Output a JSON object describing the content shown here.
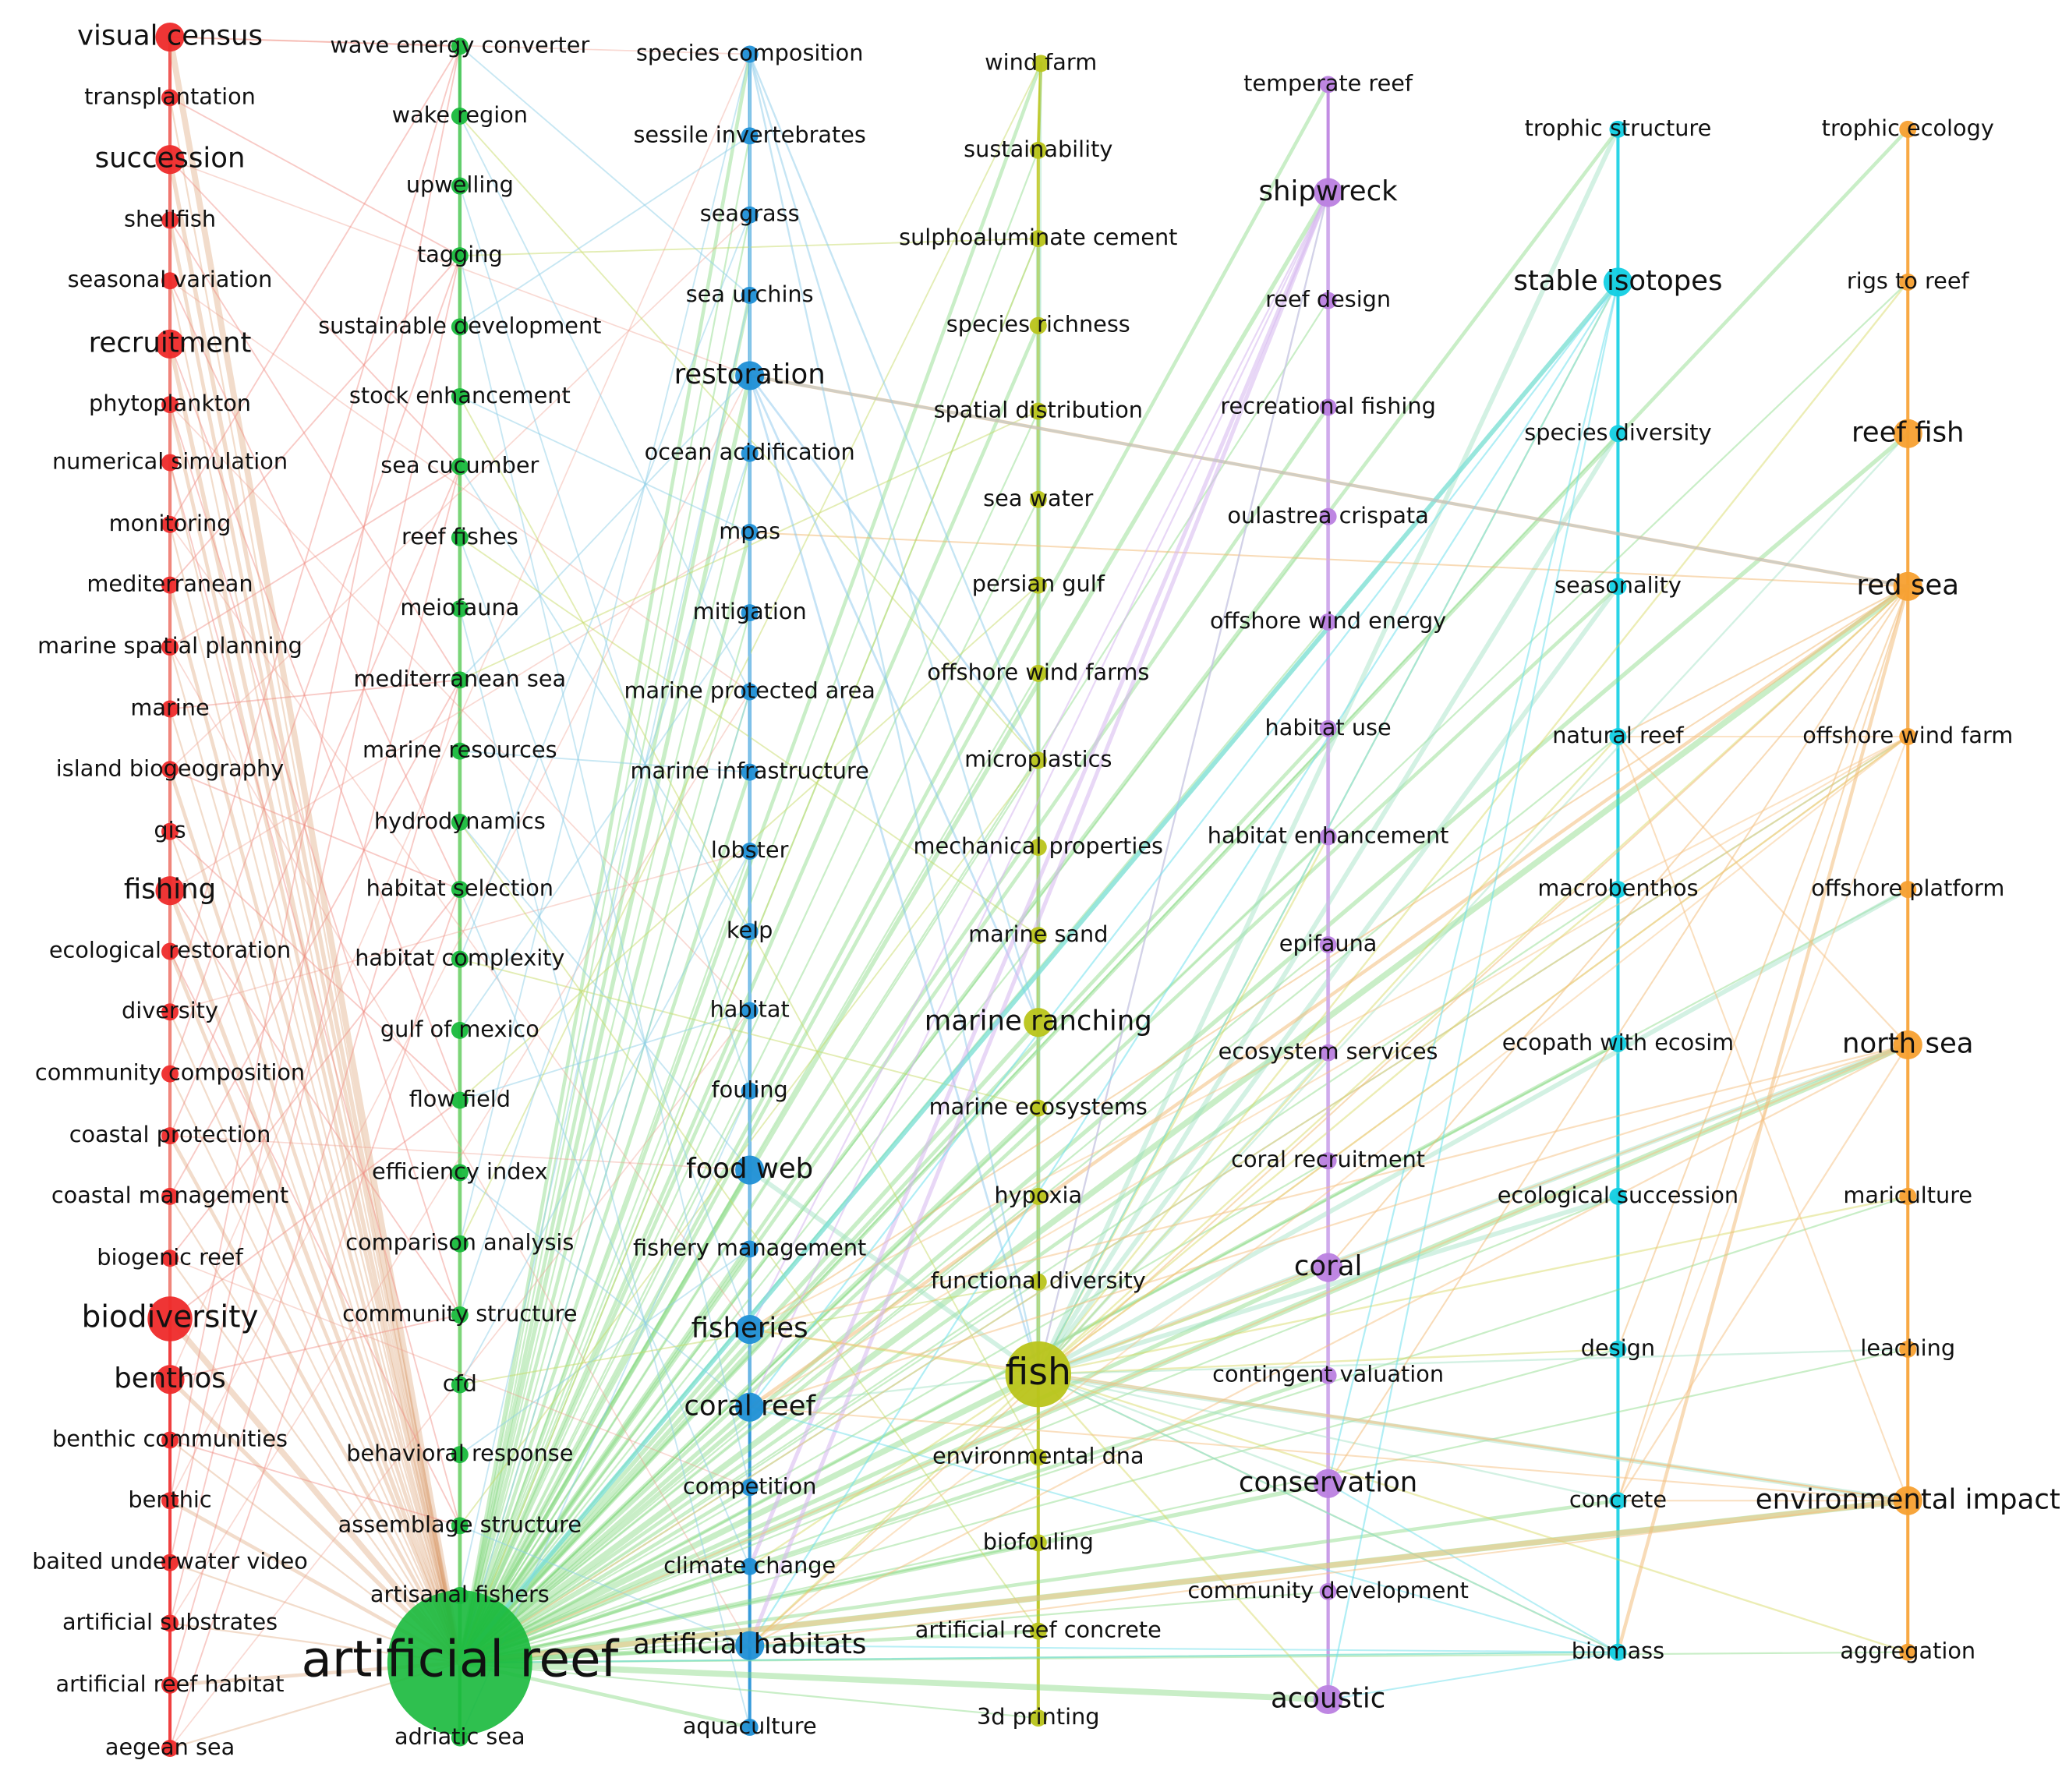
{
  "clusters": [
    {
      "id": "red",
      "color": "#ee2a2a",
      "nodes": [
        {
          "label": "visual census",
          "size": 2
        },
        {
          "label": "transplantation",
          "size": 1
        },
        {
          "label": "succession",
          "size": 2
        },
        {
          "label": "shellfish",
          "size": 1
        },
        {
          "label": "seasonal variation",
          "size": 1
        },
        {
          "label": "recruitment",
          "size": 2
        },
        {
          "label": "phytoplankton",
          "size": 1
        },
        {
          "label": "numerical simulation",
          "size": 1
        },
        {
          "label": "monitoring",
          "size": 1
        },
        {
          "label": "mediterranean",
          "size": 1
        },
        {
          "label": "marine spatial planning",
          "size": 1
        },
        {
          "label": "marine",
          "size": 1
        },
        {
          "label": "island biogeography",
          "size": 1
        },
        {
          "label": "gis",
          "size": 1
        },
        {
          "label": "fishing",
          "size": 2
        },
        {
          "label": "ecological restoration",
          "size": 1
        },
        {
          "label": "diversity",
          "size": 1
        },
        {
          "label": "community composition",
          "size": 1
        },
        {
          "label": "coastal protection",
          "size": 1
        },
        {
          "label": "coastal management",
          "size": 1
        },
        {
          "label": "biogenic reef",
          "size": 1
        },
        {
          "label": "biodiversity",
          "size": 3
        },
        {
          "label": "benthos",
          "size": 2
        },
        {
          "label": "benthic communities",
          "size": 1
        },
        {
          "label": "benthic",
          "size": 1
        },
        {
          "label": "baited underwater video",
          "size": 1
        },
        {
          "label": "artificial substrates",
          "size": 1
        },
        {
          "label": "artificial reef habitat",
          "size": 1
        },
        {
          "label": "aegean sea",
          "size": 1
        }
      ]
    },
    {
      "id": "green",
      "color": "#18b93c",
      "nodes": [
        {
          "label": "wave energy converter",
          "size": 1
        },
        {
          "label": "wake region",
          "size": 1
        },
        {
          "label": "upwelling",
          "size": 1
        },
        {
          "label": "tagging",
          "size": 1
        },
        {
          "label": "sustainable development",
          "size": 1
        },
        {
          "label": "stock enhancement",
          "size": 1
        },
        {
          "label": "sea cucumber",
          "size": 1
        },
        {
          "label": "reef fishes",
          "size": 1
        },
        {
          "label": "meiofauna",
          "size": 1
        },
        {
          "label": "mediterranean sea",
          "size": 1
        },
        {
          "label": "marine resources",
          "size": 1
        },
        {
          "label": "hydrodynamics",
          "size": 1
        },
        {
          "label": "habitat selection",
          "size": 1
        },
        {
          "label": "habitat complexity",
          "size": 1
        },
        {
          "label": "gulf of mexico",
          "size": 1
        },
        {
          "label": "flow field",
          "size": 1
        },
        {
          "label": "efficiency index",
          "size": 1
        },
        {
          "label": "comparison analysis",
          "size": 1
        },
        {
          "label": "community structure",
          "size": 1
        },
        {
          "label": "cfd",
          "size": 1
        },
        {
          "label": "behavioral response",
          "size": 1
        },
        {
          "label": "assemblage structure",
          "size": 1
        },
        {
          "label": "artisanal fishers",
          "size": 1
        },
        {
          "label": "artificial reef",
          "size": 6
        },
        {
          "label": "adriatic sea",
          "size": 1
        }
      ]
    },
    {
      "id": "blue",
      "color": "#1f8fd6",
      "nodes": [
        {
          "label": "species composition",
          "size": 1
        },
        {
          "label": "sessile invertebrates",
          "size": 1
        },
        {
          "label": "seagrass",
          "size": 1
        },
        {
          "label": "sea urchins",
          "size": 1
        },
        {
          "label": "restoration",
          "size": 2
        },
        {
          "label": "ocean acidification",
          "size": 1
        },
        {
          "label": "mpas",
          "size": 1
        },
        {
          "label": "mitigation",
          "size": 1
        },
        {
          "label": "marine protected area",
          "size": 1
        },
        {
          "label": "marine infrastructure",
          "size": 1
        },
        {
          "label": "lobster",
          "size": 1
        },
        {
          "label": "kelp",
          "size": 1
        },
        {
          "label": "habitat",
          "size": 1
        },
        {
          "label": "fouling",
          "size": 1
        },
        {
          "label": "food web",
          "size": 2
        },
        {
          "label": "fishery management",
          "size": 1
        },
        {
          "label": "fisheries",
          "size": 2
        },
        {
          "label": "coral reef",
          "size": 2
        },
        {
          "label": "competition",
          "size": 1
        },
        {
          "label": "climate change",
          "size": 1
        },
        {
          "label": "artificial habitats",
          "size": 2
        },
        {
          "label": "aquaculture",
          "size": 1
        }
      ]
    },
    {
      "id": "olive",
      "color": "#b9c41a",
      "nodes": [
        {
          "label": "wind farm",
          "size": 1
        },
        {
          "label": "sustainability",
          "size": 1
        },
        {
          "label": "sulphoaluminate cement",
          "size": 1
        },
        {
          "label": "species richness",
          "size": 1
        },
        {
          "label": "spatial distribution",
          "size": 1
        },
        {
          "label": "sea water",
          "size": 1
        },
        {
          "label": "persian gulf",
          "size": 1
        },
        {
          "label": "offshore wind farms",
          "size": 1
        },
        {
          "label": "microplastics",
          "size": 1
        },
        {
          "label": "mechanical properties",
          "size": 1
        },
        {
          "label": "marine sand",
          "size": 1
        },
        {
          "label": "marine ranching",
          "size": 2
        },
        {
          "label": "marine ecosystems",
          "size": 1
        },
        {
          "label": "hypoxia",
          "size": 1
        },
        {
          "label": "functional diversity",
          "size": 1
        },
        {
          "label": "fish",
          "size": 4
        },
        {
          "label": "environmental dna",
          "size": 1
        },
        {
          "label": "biofouling",
          "size": 1
        },
        {
          "label": "artificial reef concrete",
          "size": 1
        },
        {
          "label": "3d printing",
          "size": 1
        }
      ]
    },
    {
      "id": "purple",
      "color": "#bb7fe0",
      "nodes": [
        {
          "label": "temperate reef",
          "size": 1
        },
        {
          "label": "shipwreck",
          "size": 2
        },
        {
          "label": "reef design",
          "size": 1
        },
        {
          "label": "recreational fishing",
          "size": 1
        },
        {
          "label": "oulastrea crispata",
          "size": 1
        },
        {
          "label": "offshore wind energy",
          "size": 1
        },
        {
          "label": "habitat use",
          "size": 1
        },
        {
          "label": "habitat enhancement",
          "size": 1
        },
        {
          "label": "epifauna",
          "size": 1
        },
        {
          "label": "ecosystem services",
          "size": 1
        },
        {
          "label": "coral recruitment",
          "size": 1
        },
        {
          "label": "coral",
          "size": 2
        },
        {
          "label": "contingent valuation",
          "size": 1
        },
        {
          "label": "conservation",
          "size": 2
        },
        {
          "label": "community development",
          "size": 1
        },
        {
          "label": "acoustic",
          "size": 2
        }
      ]
    },
    {
      "id": "cyan",
      "color": "#12cfe3",
      "nodes": [
        {
          "label": "trophic structure",
          "size": 1
        },
        {
          "label": "stable isotopes",
          "size": 2
        },
        {
          "label": "species diversity",
          "size": 1
        },
        {
          "label": "seasonality",
          "size": 1
        },
        {
          "label": "natural reef",
          "size": 1
        },
        {
          "label": "macrobenthos",
          "size": 1
        },
        {
          "label": "ecopath with ecosim",
          "size": 1
        },
        {
          "label": "ecological succession",
          "size": 1
        },
        {
          "label": "design",
          "size": 1
        },
        {
          "label": "concrete",
          "size": 1
        },
        {
          "label": "biomass",
          "size": 1
        }
      ]
    },
    {
      "id": "orange",
      "color": "#f7a030",
      "nodes": [
        {
          "label": "trophic ecology",
          "size": 1
        },
        {
          "label": "rigs to reef",
          "size": 1
        },
        {
          "label": "reef fish",
          "size": 2
        },
        {
          "label": "red sea",
          "size": 2
        },
        {
          "label": "offshore wind farm",
          "size": 1
        },
        {
          "label": "offshore platform",
          "size": 1
        },
        {
          "label": "north sea",
          "size": 2
        },
        {
          "label": "mariculture",
          "size": 1
        },
        {
          "label": "leaching",
          "size": 1
        },
        {
          "label": "environmental impact",
          "size": 2
        },
        {
          "label": "aggregation",
          "size": 1
        }
      ]
    }
  ]
}
